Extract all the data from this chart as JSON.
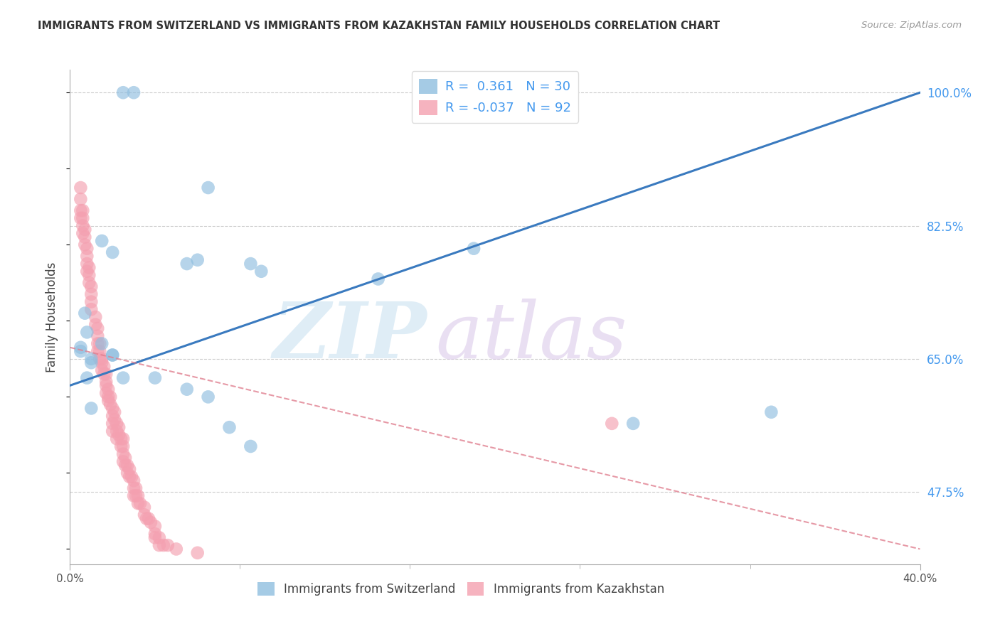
{
  "title": "IMMIGRANTS FROM SWITZERLAND VS IMMIGRANTS FROM KAZAKHSTAN FAMILY HOUSEHOLDS CORRELATION CHART",
  "source": "Source: ZipAtlas.com",
  "ylabel": "Family Households",
  "xlim": [
    0.0,
    0.4
  ],
  "ylim": [
    0.38,
    1.03
  ],
  "yticks": [
    0.475,
    0.65,
    0.825,
    1.0
  ],
  "ytick_labels": [
    "47.5%",
    "65.0%",
    "82.5%",
    "100.0%"
  ],
  "blue_color": "#8fbedf",
  "pink_color": "#f4a0b0",
  "blue_line_color": "#3a7abf",
  "pink_line_color": "#e08090",
  "R_blue": 0.361,
  "N_blue": 30,
  "R_pink": -0.037,
  "N_pink": 92,
  "blue_line_x": [
    0.0,
    0.4
  ],
  "blue_line_y": [
    0.615,
    1.0
  ],
  "pink_line_x": [
    0.0,
    0.4
  ],
  "pink_line_y": [
    0.665,
    0.4
  ],
  "blue_scatter_x": [
    0.025,
    0.03,
    0.065,
    0.19,
    0.015,
    0.02,
    0.055,
    0.06,
    0.085,
    0.09,
    0.145,
    0.015,
    0.02,
    0.01,
    0.01,
    0.02,
    0.025,
    0.04,
    0.055,
    0.065,
    0.075,
    0.085,
    0.33,
    0.01,
    0.005,
    0.005,
    0.007,
    0.008,
    0.008,
    0.265
  ],
  "blue_scatter_y": [
    1.0,
    1.0,
    0.875,
    0.795,
    0.805,
    0.79,
    0.775,
    0.78,
    0.775,
    0.765,
    0.755,
    0.67,
    0.655,
    0.65,
    0.645,
    0.655,
    0.625,
    0.625,
    0.61,
    0.6,
    0.56,
    0.535,
    0.58,
    0.585,
    0.665,
    0.66,
    0.71,
    0.685,
    0.625,
    0.565
  ],
  "pink_scatter_x": [
    0.005,
    0.005,
    0.005,
    0.005,
    0.006,
    0.006,
    0.006,
    0.006,
    0.007,
    0.007,
    0.007,
    0.008,
    0.008,
    0.008,
    0.008,
    0.009,
    0.009,
    0.009,
    0.01,
    0.01,
    0.01,
    0.01,
    0.012,
    0.012,
    0.013,
    0.013,
    0.013,
    0.013,
    0.014,
    0.014,
    0.014,
    0.015,
    0.015,
    0.015,
    0.016,
    0.016,
    0.017,
    0.017,
    0.017,
    0.017,
    0.018,
    0.018,
    0.018,
    0.019,
    0.019,
    0.02,
    0.02,
    0.02,
    0.02,
    0.021,
    0.021,
    0.022,
    0.022,
    0.022,
    0.023,
    0.023,
    0.024,
    0.024,
    0.025,
    0.025,
    0.025,
    0.025,
    0.026,
    0.026,
    0.027,
    0.027,
    0.028,
    0.028,
    0.029,
    0.03,
    0.03,
    0.03,
    0.031,
    0.031,
    0.032,
    0.032,
    0.033,
    0.035,
    0.035,
    0.036,
    0.037,
    0.038,
    0.04,
    0.04,
    0.04,
    0.042,
    0.042,
    0.044,
    0.046,
    0.05,
    0.06,
    0.255
  ],
  "pink_scatter_y": [
    0.875,
    0.86,
    0.845,
    0.835,
    0.845,
    0.835,
    0.825,
    0.815,
    0.82,
    0.81,
    0.8,
    0.795,
    0.785,
    0.775,
    0.765,
    0.77,
    0.76,
    0.75,
    0.745,
    0.735,
    0.725,
    0.715,
    0.705,
    0.695,
    0.69,
    0.68,
    0.67,
    0.66,
    0.67,
    0.66,
    0.65,
    0.65,
    0.645,
    0.635,
    0.64,
    0.63,
    0.63,
    0.62,
    0.615,
    0.605,
    0.61,
    0.6,
    0.595,
    0.6,
    0.59,
    0.585,
    0.575,
    0.565,
    0.555,
    0.58,
    0.57,
    0.565,
    0.555,
    0.545,
    0.56,
    0.55,
    0.545,
    0.535,
    0.545,
    0.535,
    0.525,
    0.515,
    0.52,
    0.51,
    0.51,
    0.5,
    0.505,
    0.495,
    0.495,
    0.49,
    0.48,
    0.47,
    0.48,
    0.47,
    0.47,
    0.46,
    0.46,
    0.455,
    0.445,
    0.44,
    0.44,
    0.435,
    0.43,
    0.42,
    0.415,
    0.415,
    0.405,
    0.405,
    0.405,
    0.4,
    0.395,
    0.565
  ]
}
